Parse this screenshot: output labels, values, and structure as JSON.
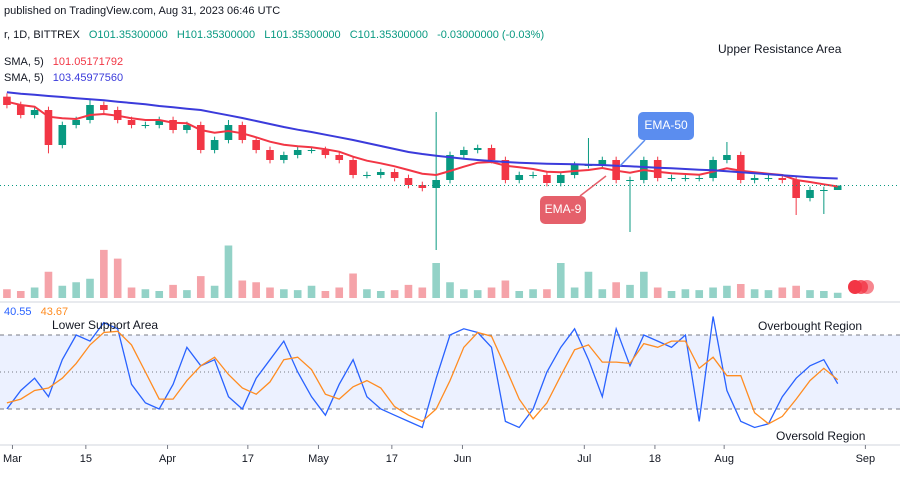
{
  "header": {
    "published": "published on TradingView.com, Aug 31, 2023 06:46 UTC"
  },
  "chart_data": [
    {
      "type": "candlestick",
      "symbol": "r, 1D, BITTREX",
      "ohlc_text": [
        "O101.35300000",
        "H101.35300000",
        "L101.35300000",
        "C101.35300000",
        "-0.03000000 (-0.03%)"
      ],
      "open": [
        128,
        125.5,
        122.5,
        124,
        113.5,
        119.5,
        121,
        125.5,
        124,
        121,
        119.5,
        119.5,
        121,
        118,
        119.5,
        112,
        115,
        119.5,
        115,
        112,
        109,
        110.5,
        112,
        112,
        110.5,
        109,
        104.5,
        104.5,
        105.4,
        103.6,
        101.5,
        100.6,
        103,
        110.5,
        112,
        112.6,
        109,
        103,
        104.5,
        104.5,
        102.1,
        104.5,
        107.5,
        107.5,
        109,
        103,
        103,
        109,
        103.6,
        103.6,
        103.6,
        103.6,
        109,
        110.5,
        103,
        103.6,
        103.6,
        103,
        97.6,
        100,
        100
      ],
      "high": [
        129,
        126.5,
        125,
        125,
        120.5,
        122,
        127,
        126.5,
        125,
        122,
        120.5,
        122,
        122,
        120.5,
        120.5,
        116,
        121,
        120.5,
        116,
        113,
        111.5,
        113,
        113,
        113,
        111.5,
        110,
        105.5,
        106.4,
        106.4,
        104.6,
        102.5,
        123.4,
        111.5,
        113,
        113.6,
        113.6,
        110,
        105.5,
        105.5,
        105.5,
        105.5,
        108.5,
        115.6,
        110,
        110,
        104,
        110,
        110,
        104.6,
        104.6,
        104.6,
        110,
        114.4,
        111.5,
        104.6,
        104.6,
        104.6,
        104,
        101,
        101,
        101.35
      ],
      "low": [
        124.5,
        121.5,
        121.5,
        111,
        112.5,
        118.5,
        120,
        123,
        120,
        118.5,
        118.5,
        118.5,
        117,
        117,
        111,
        111,
        114,
        114,
        111,
        108,
        108,
        109.5,
        111,
        109.5,
        108,
        103.5,
        103.5,
        103.5,
        102.6,
        100.5,
        99.6,
        82,
        102,
        109.5,
        111,
        108,
        102,
        102,
        103.5,
        101.1,
        101.1,
        103.5,
        106.5,
        106.5,
        102,
        87.4,
        102,
        102.6,
        102.6,
        102.6,
        102.6,
        102.6,
        108,
        102,
        102,
        102.6,
        102,
        92.5,
        96.6,
        92.8,
        100
      ],
      "close": [
        125.5,
        122.5,
        124,
        113.5,
        119.5,
        121,
        125.5,
        124,
        121,
        119.5,
        119.5,
        121,
        118,
        119.5,
        112,
        115,
        119.5,
        115,
        112,
        109,
        110.5,
        112,
        112,
        110.5,
        109,
        104.5,
        104.5,
        105.4,
        103.6,
        101.5,
        100.6,
        103,
        110.5,
        112,
        112.6,
        109,
        103,
        104.5,
        104.5,
        102.1,
        104.5,
        107.5,
        107.5,
        109,
        103,
        103,
        109,
        103.6,
        103.6,
        103.6,
        103.6,
        109,
        110.5,
        103,
        103.6,
        103.6,
        103,
        97.6,
        100,
        100,
        101.35
      ],
      "up_color": "#089981",
      "down_color": "#f23645",
      "ylim": [
        80.5,
        145
      ],
      "xlim": [
        -0.5,
        64.5
      ],
      "last_price_line": true,
      "series": [
        {
          "name": "SMA, 5)",
          "color": "#f23645",
          "value_label": "101.05171792",
          "values": [
            126.5,
            125.5,
            125,
            122,
            121.5,
            121.3,
            122.5,
            122.8,
            122.3,
            121.5,
            121,
            121,
            120.2,
            120,
            118,
            117.2,
            117.7,
            117,
            115.8,
            114.5,
            113.6,
            113.1,
            112.8,
            112.2,
            111.5,
            110,
            108.8,
            108,
            107.1,
            106,
            104.9,
            104.5,
            105.7,
            107,
            108.2,
            108.4,
            107.3,
            106.8,
            106.3,
            105.5,
            105.3,
            105.7,
            106,
            106.6,
            105.8,
            105.2,
            106,
            105.5,
            105,
            104.8,
            104.6,
            105.5,
            106.5,
            105.8,
            105.3,
            104.9,
            104.5,
            103,
            102.4,
            101.7,
            101.05171792
          ]
        },
        {
          "name": "SMA, 5)",
          "color": "#3b3bdb",
          "value_label": "103.45977560",
          "values": [
            129.3,
            128.9,
            128.6,
            128.2,
            127.9,
            127.5,
            127.2,
            126.9,
            126.5,
            126.1,
            125.7,
            125.2,
            124.8,
            124.4,
            124,
            123.2,
            122.4,
            121.6,
            120.7,
            119.8,
            118.9,
            118.1,
            117.4,
            116.6,
            115.8,
            115,
            114.1,
            113.2,
            112.3,
            111.4,
            110.8,
            110.3,
            109.8,
            109.4,
            109,
            108.7,
            108.4,
            108.2,
            108,
            107.9,
            107.8,
            107.7,
            107.6,
            107.5,
            107.3,
            107.1,
            106.9,
            106.7,
            106.5,
            106.3,
            106.1,
            105.9,
            105.6,
            105.3,
            105,
            104.7,
            104.4,
            104.1,
            103.8,
            103.6,
            103.4597756
          ]
        }
      ],
      "annotations": [
        {
          "text": "Upper Resistance Area"
        },
        {
          "text": "EMA-50",
          "color": "#5b8def"
        },
        {
          "text": "EMA-9",
          "color": "#e5606b"
        }
      ]
    },
    {
      "type": "bar",
      "values": [
        10,
        8,
        12,
        30,
        14,
        18,
        22,
        55,
        45,
        12,
        10,
        8,
        15,
        9,
        25,
        14,
        60,
        20,
        18,
        12,
        10,
        9,
        14,
        8,
        12,
        28,
        10,
        8,
        9,
        15,
        12,
        40,
        18,
        10,
        9,
        12,
        20,
        8,
        10,
        10,
        40,
        12,
        30,
        10,
        18,
        15,
        30,
        12,
        8,
        10,
        9,
        12,
        14,
        16,
        10,
        9,
        12,
        14,
        9,
        8,
        6
      ],
      "up_color": "#93d2c7",
      "down_color": "#f5a3a9",
      "ylim": [
        0,
        80
      ],
      "xlim": [
        -0.5,
        64.5
      ]
    },
    {
      "type": "line",
      "series": [
        {
          "color": "#2962ff",
          "values": [
            20,
            35,
            45,
            30,
            60,
            80,
            75,
            90,
            85,
            40,
            25,
            20,
            40,
            70,
            55,
            60,
            30,
            20,
            45,
            60,
            75,
            50,
            30,
            15,
            40,
            60,
            30,
            20,
            15,
            10,
            5,
            45,
            80,
            85,
            82,
            70,
            10,
            5,
            20,
            50,
            70,
            85,
            60,
            30,
            85,
            55,
            80,
            75,
            70,
            80,
            10,
            95,
            35,
            10,
            5,
            8,
            30,
            45,
            55,
            60,
            40.55
          ]
        },
        {
          "color": "#ff8c21",
          "values": [
            25,
            28,
            35,
            37,
            45,
            57,
            72,
            82,
            83,
            72,
            50,
            28,
            28,
            43,
            55,
            62,
            48,
            37,
            32,
            42,
            60,
            62,
            52,
            32,
            28,
            38,
            43,
            37,
            22,
            15,
            10,
            20,
            43,
            70,
            82,
            79,
            54,
            28,
            12,
            25,
            47,
            68,
            72,
            58,
            58,
            57,
            73,
            70,
            75,
            75,
            53,
            62,
            47,
            47,
            17,
            8,
            14,
            28,
            43,
            53,
            43.67
          ]
        }
      ],
      "hlines": [
        80,
        50,
        20
      ],
      "band": [
        20,
        80
      ],
      "band_color": "#2962ff",
      "ylim": [
        0,
        100
      ],
      "xlim": [
        -0.5,
        64.5
      ],
      "xticks": [
        {
          "value": 0.4,
          "label": "Mar"
        },
        {
          "value": 5.7,
          "label": "15"
        },
        {
          "value": 11.6,
          "label": "Apr"
        },
        {
          "value": 17.4,
          "label": "17"
        },
        {
          "value": 22.5,
          "label": "May"
        },
        {
          "value": 27.8,
          "label": "17"
        },
        {
          "value": 32.9,
          "label": "Jun"
        },
        {
          "value": 41.7,
          "label": "Jul"
        },
        {
          "value": 46.8,
          "label": "18"
        },
        {
          "value": 51.8,
          "label": "Aug"
        },
        {
          "value": 62,
          "label": "Sep"
        }
      ],
      "annotations": [
        {
          "text": "Lower Support Area"
        },
        {
          "text": "Overbought Region"
        },
        {
          "text": "Oversold Region"
        }
      ]
    }
  ]
}
